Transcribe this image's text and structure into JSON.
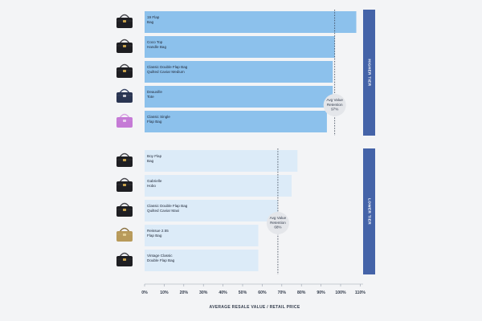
{
  "chart_data": {
    "type": "bar",
    "orientation": "horizontal",
    "xlabel": "AVERAGE RESALE VALUE / RETAIL PRICE",
    "ylabel": "",
    "xlim": [
      0,
      110
    ],
    "xticks": [
      "0%",
      "10%",
      "20%",
      "30%",
      "40%",
      "50%",
      "60%",
      "70%",
      "80%",
      "90%",
      "100%",
      "110%"
    ],
    "groups": [
      {
        "tier": "HIGHER TIER",
        "bar_color": "#8cc1ec",
        "avg_label": [
          "Avg Value",
          "Retention",
          "97%"
        ],
        "avg_value": 97,
        "bars": [
          {
            "label": [
              "19 Flap",
              "Bag"
            ],
            "value": 108,
            "icon": "black-19-flap-bag-icon"
          },
          {
            "label": [
              "Coco Top",
              "Handle Bag"
            ],
            "value": 97,
            "icon": "black-coco-top-handle-bag-icon"
          },
          {
            "label": [
              "Classic Double Flap Bag",
              "Quilted Caviar Medium"
            ],
            "value": 96,
            "icon": "black-classic-double-flap-bag-icon"
          },
          {
            "label": [
              "Deauville",
              "Tote"
            ],
            "value": 96,
            "icon": "navy-deauville-tote-icon"
          },
          {
            "label": [
              "Classic Single",
              "Flap Bag"
            ],
            "value": 93,
            "icon": "pink-classic-single-flap-bag-icon"
          }
        ]
      },
      {
        "tier": "LOWER TIER",
        "bar_color": "#dcebf8",
        "avg_label": [
          "Avg Value",
          "Retention",
          "68%"
        ],
        "avg_value": 68,
        "bars": [
          {
            "label": [
              "Boy Flap",
              "Bag"
            ],
            "value": 78,
            "icon": "black-boy-flap-bag-icon"
          },
          {
            "label": [
              "Gabrielle",
              "Hobo"
            ],
            "value": 75,
            "icon": "black-gabrielle-hobo-icon"
          },
          {
            "label": [
              "Classic Double Flap Bag",
              "Quilted Caviar Maxi"
            ],
            "value": 68,
            "icon": "black-classic-maxi-flap-bag-icon"
          },
          {
            "label": [
              "Reissue 2.55",
              "Flap Bag"
            ],
            "value": 58,
            "icon": "gold-reissue-255-flap-bag-icon"
          },
          {
            "label": [
              "Vintage Classic",
              "Double Flap Bag"
            ],
            "value": 58,
            "icon": "black-vintage-classic-flap-bag-icon"
          }
        ]
      }
    ],
    "tier_color": "#4463a8",
    "avg_line": "dotted",
    "grid": false,
    "legend": "none"
  }
}
